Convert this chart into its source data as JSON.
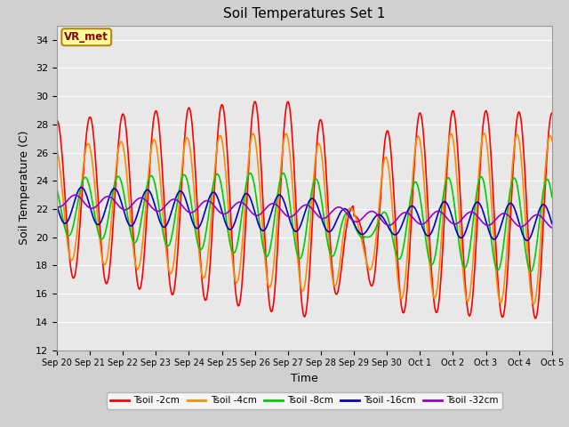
{
  "title": "Soil Temperatures Set 1",
  "xlabel": "Time",
  "ylabel": "Soil Temperature (C)",
  "ylim": [
    12,
    35
  ],
  "yticks": [
    12,
    14,
    16,
    18,
    20,
    22,
    24,
    26,
    28,
    30,
    32,
    34
  ],
  "fig_bg": "#d0d0d0",
  "plot_bg": "#e8e8e8",
  "annotation_text": "VR_met",
  "annotation_bg": "#ffff99",
  "annotation_border": "#b8860b",
  "annotation_text_color": "#8b0000",
  "series_colors": {
    "Tsoil -2cm": "#ff0000",
    "Tsoil -4cm": "#ff8c00",
    "Tsoil -8cm": "#00cc00",
    "Tsoil -16cm": "#0000cc",
    "Tsoil -32cm": "#9900cc"
  },
  "n_days": 15,
  "points_per_day": 48
}
